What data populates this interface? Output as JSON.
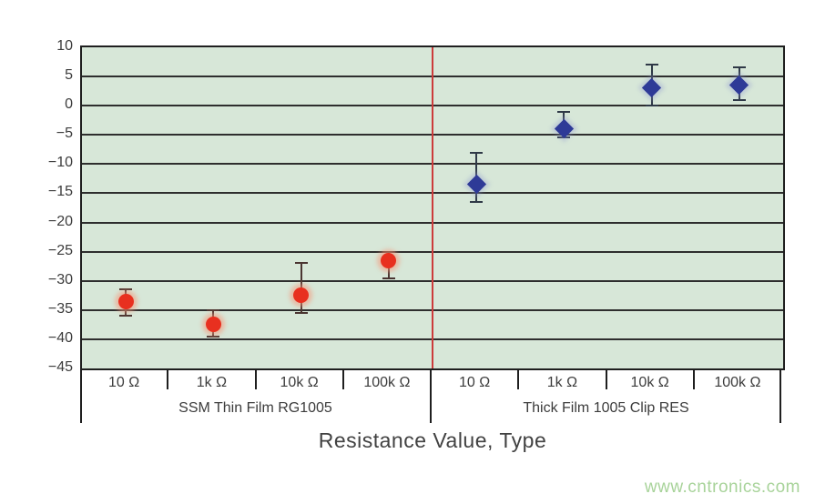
{
  "chart_data": {
    "type": "scatter",
    "title": "",
    "xlabel": "Resistance Value, Type",
    "ylabel": "",
    "ylim": [
      -45,
      10
    ],
    "ytick_step": 5,
    "grid": true,
    "plot_bg": "#d7e7d8",
    "grid_color": "#2e2e2e",
    "separator_color": "#cc3b3b",
    "categories": [
      "10 Ω",
      "1k Ω",
      "10k Ω",
      "100k Ω"
    ],
    "series": [
      {
        "name": "SSM Thin Film RG1005",
        "marker": "circle",
        "color": "#e8301f",
        "halo": "rgba(246,150,120,0.55)",
        "error_color": "#4a3531",
        "points": [
          {
            "x": "10 Ω",
            "y": -33.5,
            "err_low": -36,
            "err_high": -31.5
          },
          {
            "x": "1k Ω",
            "y": -37.5,
            "err_low": -39.5,
            "err_high": -35
          },
          {
            "x": "10k Ω",
            "y": -32.5,
            "err_low": -35.5,
            "err_high": -27
          },
          {
            "x": "100k Ω",
            "y": -26.5,
            "err_low": -29.5,
            "err_high": -25
          }
        ]
      },
      {
        "name": "Thick Film 1005 Clip RES",
        "marker": "diamond",
        "color": "#2e3a97",
        "halo": "rgba(140,150,210,0.35)",
        "error_color": "#2f3947",
        "points": [
          {
            "x": "10 Ω",
            "y": -13.5,
            "err_low": -16.5,
            "err_high": -8
          },
          {
            "x": "1k Ω",
            "y": -4,
            "err_low": -5.5,
            "err_high": -1
          },
          {
            "x": "10k Ω",
            "y": 3,
            "err_low": 0,
            "err_high": 7
          },
          {
            "x": "100k Ω",
            "y": 3.5,
            "err_low": 1,
            "err_high": 6.5
          }
        ]
      }
    ]
  },
  "watermark": {
    "text": "www.cntronics.com",
    "color": "#a8d39a"
  }
}
